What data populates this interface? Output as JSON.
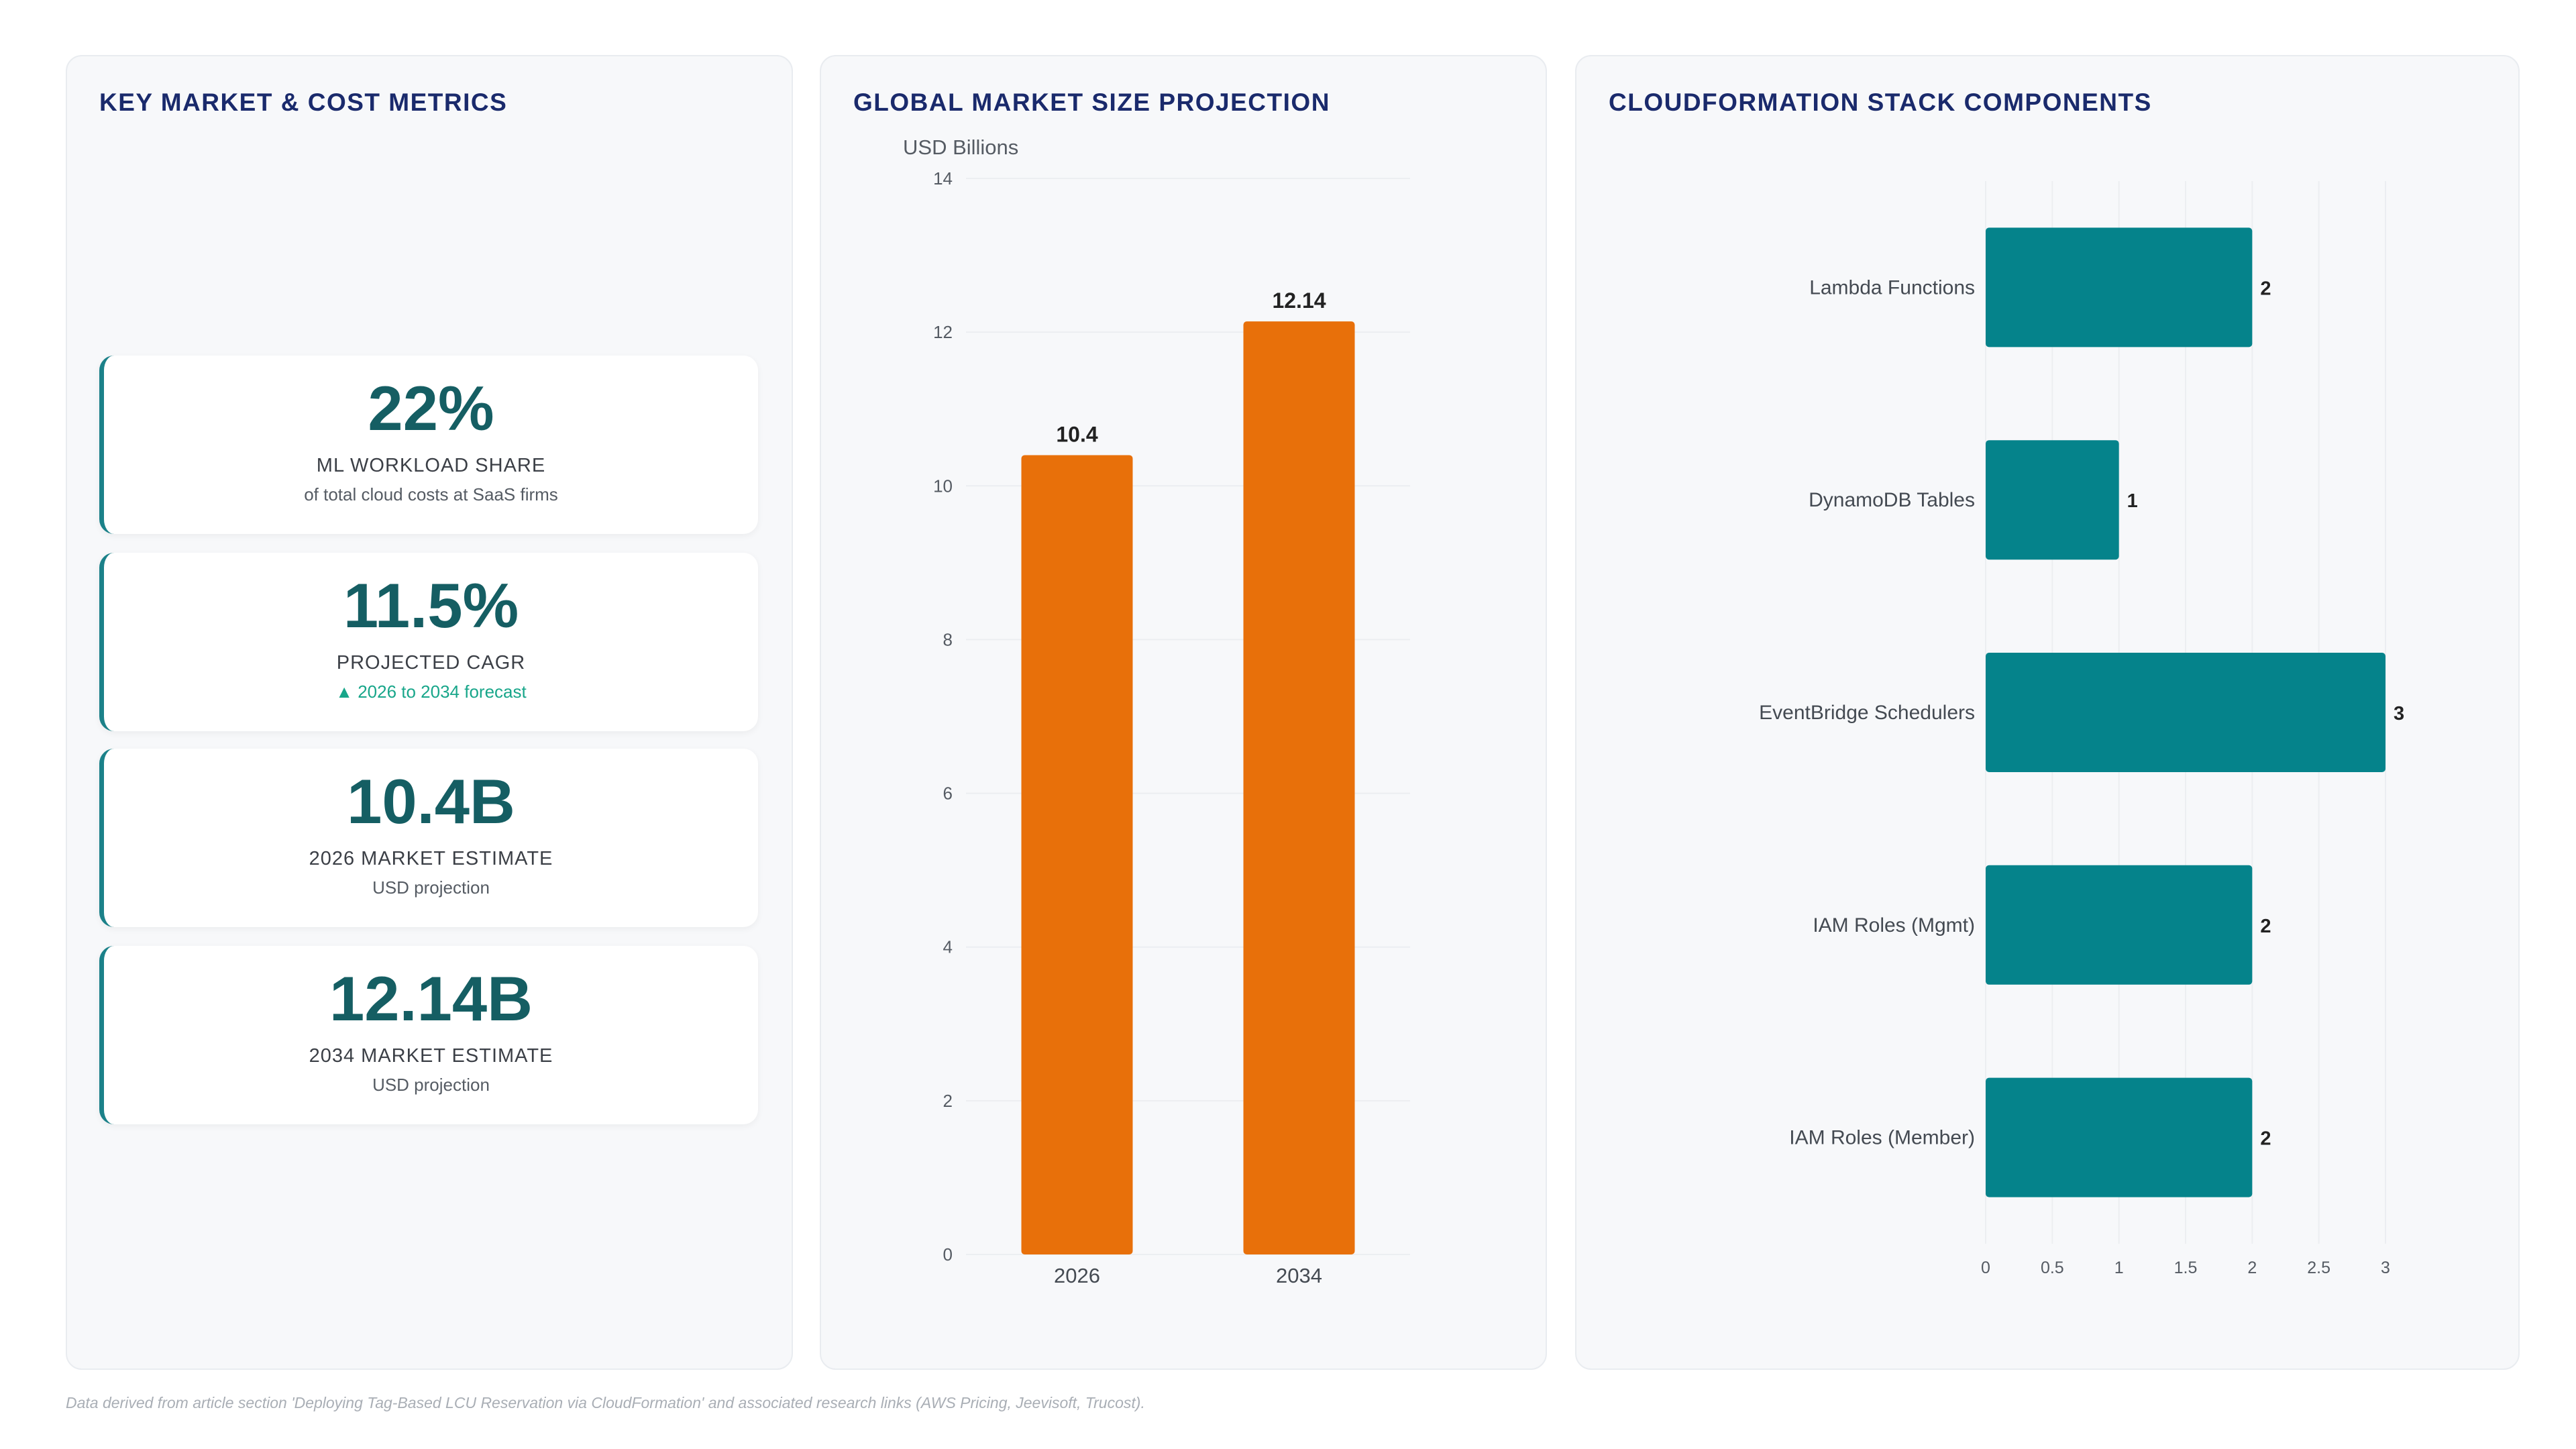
{
  "metrics_panel": {
    "title": "KEY MARKET & COST METRICS",
    "cards": [
      {
        "value": "22%",
        "label": "ML WORKLOAD SHARE",
        "sub": "of total cloud costs at SaaS firms"
      },
      {
        "value": "11.5%",
        "label": "PROJECTED CAGR",
        "sub": "▲ 2026 to 2034 forecast"
      },
      {
        "value": "10.4B",
        "label": "2026 MARKET ESTIMATE",
        "sub": "USD projection"
      },
      {
        "value": "12.14B",
        "label": "2034 MARKET ESTIMATE",
        "sub": "USD projection"
      }
    ]
  },
  "market_panel": {
    "title": "GLOBAL MARKET SIZE PROJECTION",
    "unit": "USD Billions"
  },
  "stack_panel": {
    "title": "CLOUDFORMATION STACK COMPONENTS"
  },
  "footer": "Data derived from article section 'Deploying Tag-Based LCU Reservation via CloudFormation' and associated research links (AWS Pricing, Jeevisoft, Trucost).",
  "colors": {
    "accent": "#1b8189",
    "bar_orange": "#e8700a",
    "bar_teal": "#05838b",
    "title": "#1a2a6c"
  },
  "chart_data": [
    {
      "type": "bar",
      "title": "GLOBAL MARKET SIZE PROJECTION",
      "ylabel": "USD Billions",
      "categories": [
        "2026",
        "2034"
      ],
      "values": [
        10.4,
        12.14
      ],
      "value_labels": [
        "10.4",
        "12.14"
      ],
      "ylim": [
        0,
        14
      ],
      "yticks": [
        0,
        2,
        4,
        6,
        8,
        10,
        12,
        14
      ],
      "grid": true,
      "color": "#e8700a"
    },
    {
      "type": "bar",
      "orientation": "horizontal",
      "title": "CLOUDFORMATION STACK COMPONENTS",
      "categories": [
        "Lambda Functions",
        "DynamoDB Tables",
        "EventBridge Schedulers",
        "IAM Roles (Mgmt)",
        "IAM Roles (Member)"
      ],
      "values": [
        2,
        1,
        3,
        2,
        2
      ],
      "xlim": [
        0,
        3
      ],
      "xticks": [
        0,
        0.5,
        1,
        1.5,
        2,
        2.5,
        3
      ],
      "grid": true,
      "color": "#05838b"
    }
  ]
}
